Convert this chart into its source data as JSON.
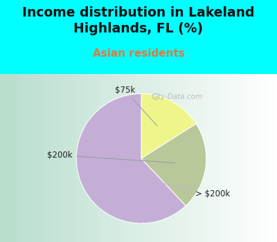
{
  "title": "Income distribution in Lakeland\nHighlands, FL (%)",
  "subtitle": "Asian residents",
  "title_color": "#111111",
  "subtitle_color": "#e07840",
  "title_fontsize": 13.5,
  "subtitle_fontsize": 11,
  "slices": [
    {
      "label": "$75k",
      "value": 16,
      "color": "#eef58a"
    },
    {
      "label": "$200k",
      "value": 22,
      "color": "#b8c89a"
    },
    {
      "label": "> $200k",
      "value": 62,
      "color": "#c4aed6"
    }
  ],
  "top_bg_color": "#00ffff",
  "chart_bg_left": "#b8ddc8",
  "chart_bg_right": "#f0f8ff",
  "watermark": "City-Data.com",
  "label_fontsize": 8.5,
  "startangle": 90,
  "counterclock": false
}
